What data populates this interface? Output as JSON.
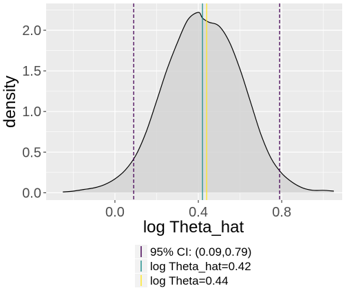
{
  "chart_data": {
    "type": "area",
    "xlabel": "log Theta_hat",
    "ylabel": "density",
    "xlim": [
      -0.33,
      1.09
    ],
    "ylim": [
      -0.09,
      2.33
    ],
    "x_ticks": [
      0.0,
      0.4,
      0.8
    ],
    "x_tick_labels": [
      "0.0",
      "0.4",
      "0.8"
    ],
    "y_ticks": [
      0.0,
      0.5,
      1.0,
      1.5,
      2.0
    ],
    "y_tick_labels": [
      "0.0",
      "0.5",
      "1.0",
      "1.5",
      "2.0"
    ],
    "grid": true,
    "legend_position": "bottom",
    "density": {
      "x": [
        -0.25,
        -0.2,
        -0.15,
        -0.1,
        -0.05,
        0.0,
        0.05,
        0.1,
        0.15,
        0.2,
        0.25,
        0.3,
        0.35,
        0.4,
        0.42,
        0.45,
        0.5,
        0.55,
        0.6,
        0.65,
        0.7,
        0.75,
        0.8,
        0.85,
        0.9,
        0.95,
        1.0,
        1.05
      ],
      "y": [
        0.01,
        0.02,
        0.04,
        0.06,
        0.1,
        0.17,
        0.28,
        0.46,
        0.75,
        1.13,
        1.52,
        1.85,
        2.13,
        2.22,
        2.15,
        2.1,
        2.05,
        1.85,
        1.52,
        1.12,
        0.72,
        0.42,
        0.24,
        0.13,
        0.06,
        0.03,
        0.03,
        0.02
      ],
      "fill_color": "#d3d3d3",
      "line_color": "#000000"
    },
    "vlines": [
      {
        "key": "ci-lower",
        "x": 0.09,
        "color": "#440154",
        "dash": true
      },
      {
        "key": "ci-upper",
        "x": 0.79,
        "color": "#440154",
        "dash": true
      },
      {
        "key": "theta-hat",
        "x": 0.42,
        "color": "#21908c",
        "dash": false
      },
      {
        "key": "theta",
        "x": 0.44,
        "color": "#fde725",
        "dash": false
      }
    ],
    "legend": [
      {
        "label": "95% CI: (0.09,0.79)",
        "color": "#440154"
      },
      {
        "label": "log Theta_hat=0.42",
        "color": "#21908c"
      },
      {
        "label": "log Theta=0.44",
        "color": "#fde725"
      }
    ]
  }
}
